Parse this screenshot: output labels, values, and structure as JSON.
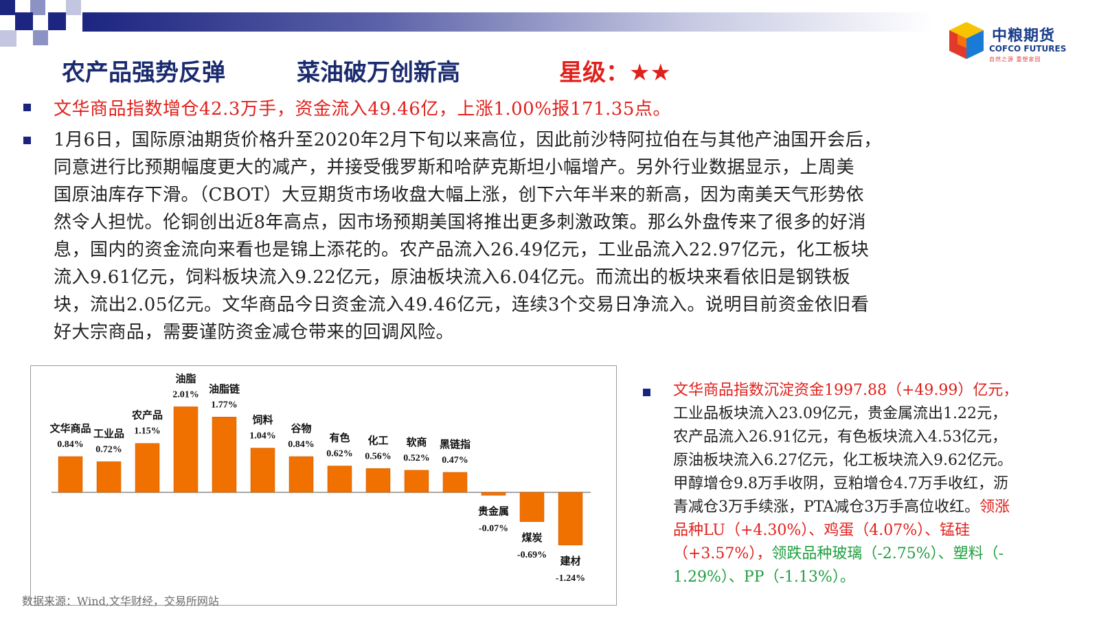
{
  "header": {
    "title_part1": "农产品强势反弹",
    "title_part2": "菜油破万创新高",
    "rating_label": "星级：★★",
    "logo_cn": "中粮期货",
    "logo_en": "COFCO FUTURES",
    "logo_slogan": "自然之源  重塑家园"
  },
  "bullet1": "文华商品指数增仓42.3万手，资金流入49.46亿，上涨1.00%报171.35点。",
  "bullet2_lines": [
    "1月6日，国际原油期货价格升至2020年2月下旬以来高位，因此前沙特阿拉伯在与其他产油国开会后，",
    "同意进行比预期幅度更大的减产，并接受俄罗斯和哈萨克斯坦小幅增产。另外行业数据显示，上周美",
    "国原油库存下滑。（CBOT）大豆期货市场收盘大幅上涨，创下六年半来的新高，因为南美天气形势依",
    "然令人担忧。伦铜创出近8年高点，因市场预期美国将推出更多刺激政策。那么外盘传来了很多的好消",
    "息，国内的资金流向来看也是锦上添花的。农产品流入26.49亿元，工业品流入22.97亿元，化工板块",
    "流入9.61亿元，饲料板块流入9.22亿元，原油板块流入6.04亿元。而流出的板块来看依旧是钢铁板",
    "块，流出2.05亿元。文华商品今日资金流入49.46亿元，连续3个交易日净流入。说明目前资金依旧看",
    "好大宗商品，需要谨防资金减仓带来的回调风险。"
  ],
  "chart_data": {
    "type": "bar",
    "categories": [
      "文华商品",
      "工业品",
      "农产品",
      "油脂",
      "油脂链",
      "饲料",
      "谷物",
      "有色",
      "化工",
      "软商",
      "黑链指",
      "贵金属",
      "煤炭",
      "建材"
    ],
    "values": [
      0.84,
      0.72,
      1.15,
      2.01,
      1.77,
      1.04,
      0.84,
      0.62,
      0.56,
      0.52,
      0.47,
      -0.07,
      -0.69,
      -1.24
    ],
    "value_labels": [
      "0.84%",
      "0.72%",
      "1.15%",
      "2.01%",
      "1.77%",
      "1.04%",
      "0.84%",
      "0.62%",
      "0.56%",
      "0.52%",
      "0.47%",
      "-0.07%",
      "-0.69%",
      "-1.24%"
    ],
    "title": "",
    "xlabel": "",
    "ylabel": "",
    "ylim": [
      -1.5,
      2.3
    ],
    "bar_color": "#f07000",
    "grid": false
  },
  "source": "数据来源：Wind,文华财经，交易所网站",
  "bullet3": {
    "line1": "文华商品指数沉淀资金1997.88（+49.99）亿元，",
    "line2": "工业品板块流入23.09亿元，贵金属流出1.22元，",
    "line3": "农产品流入26.91亿元，有色板块流入4.53亿元，",
    "line4": "原油板块流入6.27亿元，化工板块流入9.62亿元。",
    "line5": "甲醇增仓9.8万手收阴，豆粕增仓4.7万手收红，沥",
    "line6_dark": "青减仓3万手续涨，PTA减仓3万手高位收红。",
    "line6_red": "领涨",
    "line7": "品种LU（+4.30%）、鸡蛋（4.07%）、锰硅",
    "line8_red": "（+3.57%），",
    "line8_green": "领跌品种玻璃（-2.75%）、塑料（-",
    "line9_green": "1.29%）、PP（-1.13%）。"
  },
  "colors": {
    "navy": "#1a237e",
    "title_navy": "#1a2a6e",
    "red": "#e0201b",
    "green": "#1f9e3f",
    "orange": "#f07000"
  }
}
